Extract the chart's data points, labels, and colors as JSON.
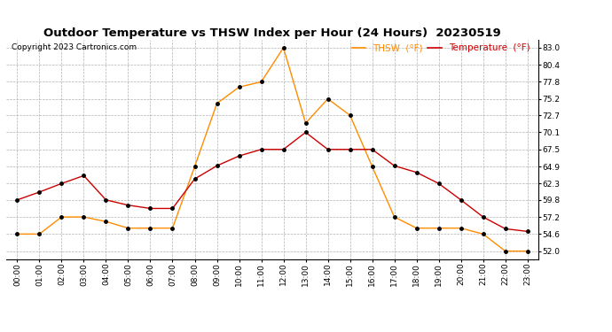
{
  "title": "Outdoor Temperature vs THSW Index per Hour (24 Hours)  20230519",
  "copyright": "Copyright 2023 Cartronics.com",
  "hours": [
    "00:00",
    "01:00",
    "02:00",
    "03:00",
    "04:00",
    "05:00",
    "06:00",
    "07:00",
    "08:00",
    "09:00",
    "10:00",
    "11:00",
    "12:00",
    "13:00",
    "14:00",
    "15:00",
    "16:00",
    "17:00",
    "18:00",
    "19:00",
    "20:00",
    "21:00",
    "22:00",
    "23:00"
  ],
  "temperature": [
    59.8,
    61.0,
    62.3,
    63.5,
    59.8,
    59.0,
    58.5,
    58.5,
    63.0,
    65.0,
    66.5,
    67.5,
    67.5,
    70.1,
    67.5,
    67.5,
    67.5,
    65.0,
    64.0,
    62.3,
    59.8,
    57.2,
    55.4,
    55.0
  ],
  "thsw": [
    54.6,
    54.6,
    57.2,
    57.2,
    56.5,
    55.5,
    55.5,
    55.5,
    64.9,
    74.5,
    77.0,
    77.8,
    83.0,
    71.5,
    75.2,
    72.7,
    64.9,
    57.2,
    55.5,
    55.5,
    55.5,
    54.6,
    52.0,
    52.0
  ],
  "temp_color": "#cc0000",
  "thsw_color": "#ff8c00",
  "marker_color": "#000000",
  "background_color": "#ffffff",
  "grid_color": "#b0b0b0",
  "ylim_min": 50.8,
  "ylim_max": 84.2,
  "yticks": [
    52.0,
    54.6,
    57.2,
    59.8,
    62.3,
    64.9,
    67.5,
    70.1,
    72.7,
    75.2,
    77.8,
    80.4,
    83.0
  ],
  "legend_thsw": "THSW  (°F)",
  "legend_temp": "Temperature  (°F)",
  "title_fontsize": 9.5,
  "copyright_fontsize": 6.5,
  "axis_fontsize": 6.5,
  "legend_fontsize": 7.5
}
